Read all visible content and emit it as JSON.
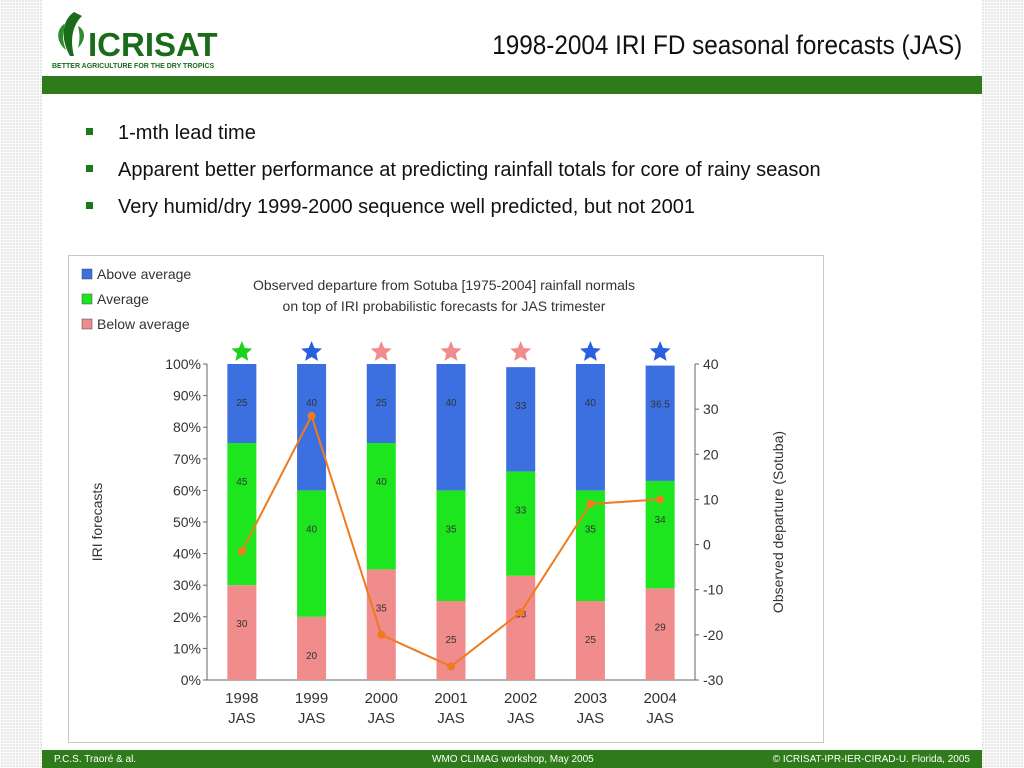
{
  "logo": {
    "name": "ICRISAT",
    "tagline": "BETTER AGRICULTURE FOR THE DRY TROPICS",
    "brand_color": "#1a6b1a"
  },
  "slide_title": "1998-2004 IRI FD seasonal forecasts (JAS)",
  "bullets": [
    "1-mth lead time",
    "Apparent better performance at predicting rainfall totals for core of rainy season",
    "Very humid/dry 1999-2000 sequence well predicted, but not 2001"
  ],
  "footer": {
    "left": "P.C.S. Traoré & al.",
    "center": "WMO CLIMAG workshop, May 2005",
    "right": "© ICRISAT-IPR-IER-CIRAD-U. Florida, 2005"
  },
  "colors": {
    "accent_green": "#2f7b1c",
    "above": "#3c6fe0",
    "average": "#1ee61e",
    "below": "#f08c8c",
    "line": "#f07a1e",
    "star_green": "#1ed11e",
    "star_blue": "#2a5fe0",
    "star_pink": "#f08c8c"
  },
  "chart_data": {
    "type": "bar",
    "title": "Observed departure from Sotuba [1975-2004] rainfall normals on top of IRI probabilistic forecasts for JAS trimester",
    "title_lines": [
      "Observed departure from Sotuba [1975-2004] rainfall normals",
      "on top of IRI probabilistic forecasts for JAS trimester"
    ],
    "categories": [
      "1998",
      "1999",
      "2000",
      "2001",
      "2002",
      "2003",
      "2004"
    ],
    "category_sub": "JAS",
    "stacked": true,
    "ylabel": "IRI forecasts",
    "ylim": [
      0,
      100
    ],
    "yticks": [
      "0%",
      "10%",
      "20%",
      "30%",
      "40%",
      "50%",
      "60%",
      "70%",
      "80%",
      "90%",
      "100%"
    ],
    "y2label": "Observed departure (Sotuba)",
    "y2lim": [
      -30,
      40
    ],
    "y2ticks": [
      "-30",
      "-20",
      "-10",
      "0",
      "10",
      "20",
      "30",
      "40"
    ],
    "legend": [
      "Above average",
      "Average",
      "Below average"
    ],
    "legend_position": "top-left",
    "series": [
      {
        "name": "Below average",
        "values": [
          30,
          20,
          35,
          25,
          33,
          25,
          29
        ],
        "labels": [
          "30",
          "20",
          "35",
          "25",
          "33",
          "25",
          "29"
        ]
      },
      {
        "name": "Average",
        "values": [
          45,
          40,
          40,
          35,
          33,
          35,
          34
        ],
        "labels": [
          "45",
          "40",
          "40",
          "35",
          "33",
          "35",
          "34"
        ]
      },
      {
        "name": "Above average",
        "values": [
          25,
          40,
          25,
          40,
          33,
          40,
          36.5
        ],
        "labels": [
          "25",
          "40",
          "25",
          "40",
          "33",
          "40",
          "36.5"
        ]
      }
    ],
    "line_series": {
      "values": [
        -1.5,
        28.5,
        -20,
        -27,
        -15,
        9,
        10
      ],
      "axis": "right"
    },
    "markers": [
      "green",
      "blue",
      "pink",
      "pink",
      "pink",
      "blue",
      "blue"
    ]
  }
}
